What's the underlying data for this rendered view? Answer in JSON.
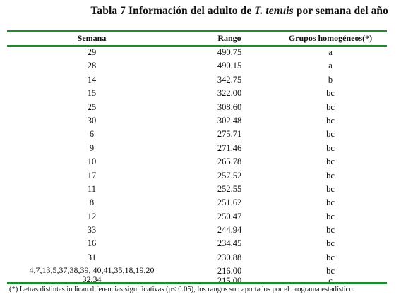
{
  "title": {
    "prefix": "Tabla 7 Información del adulto de ",
    "species": "T. tenuis",
    "suffix": " por semana del año"
  },
  "table": {
    "headers": {
      "semana": "Semana",
      "rango": "Rango",
      "grupos": "Grupos homogéneos(*)"
    },
    "rows": [
      {
        "semana": "29",
        "rango": "490.75",
        "grupo": "a"
      },
      {
        "semana": "28",
        "rango": "490.15",
        "grupo": "a"
      },
      {
        "semana": "14",
        "rango": "342.75",
        "grupo": "b"
      },
      {
        "semana": "15",
        "rango": "322.00",
        "grupo": "bc"
      },
      {
        "semana": "25",
        "rango": "308.60",
        "grupo": "bc"
      },
      {
        "semana": "30",
        "rango": "302.48",
        "grupo": "bc"
      },
      {
        "semana": "6",
        "rango": "275.71",
        "grupo": "bc"
      },
      {
        "semana": "9",
        "rango": "271.46",
        "grupo": "bc"
      },
      {
        "semana": "10",
        "rango": "265.78",
        "grupo": "bc"
      },
      {
        "semana": "17",
        "rango": "257.52",
        "grupo": "bc"
      },
      {
        "semana": "11",
        "rango": "252.55",
        "grupo": "bc"
      },
      {
        "semana": "8",
        "rango": "251.62",
        "grupo": "bc"
      },
      {
        "semana": "12",
        "rango": "250.47",
        "grupo": "bc"
      },
      {
        "semana": "33",
        "rango": "244.94",
        "grupo": "bc"
      },
      {
        "semana": "16",
        "rango": "234.45",
        "grupo": "bc"
      },
      {
        "semana": "31",
        "rango": "230.88",
        "grupo": "bc"
      }
    ],
    "last_row": {
      "semana_line1": "4,7,13,5,37,38,39, 40,41,35,18,19,20",
      "semana_line2": "32,34",
      "rango_line1": "216.00",
      "rango_line2": "215.00",
      "grupo_line1": "bc",
      "grupo_line2": "c"
    }
  },
  "footnote": "(*) Letras distintas indican diferencias significativas (p≤ 0.05), los rangos son aportados por el programa  estadístico.",
  "colors": {
    "rule": "#1f8a2c"
  }
}
